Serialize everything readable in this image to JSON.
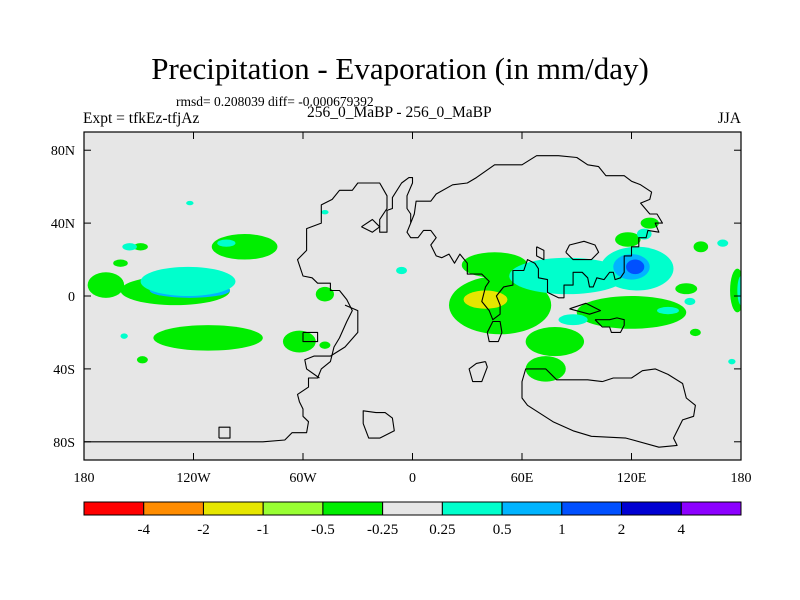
{
  "chart_data": {
    "type": "heatmap",
    "title": "Precipitation - Evaporation (in mm/day)",
    "subtitle": "rmsd= 0.208039 diff= -0.000679392",
    "left_string": "Expt = tfkEz-tfjAz",
    "center_string": "256_0_MaBP - 256_0_MaBP",
    "right_string": "JJA",
    "xlim": [
      -180,
      180
    ],
    "ylim": [
      -90,
      90
    ],
    "x_ticks": [
      {
        "value": -180,
        "label": "180"
      },
      {
        "value": -120,
        "label": "120W"
      },
      {
        "value": -60,
        "label": "60W"
      },
      {
        "value": 0,
        "label": "0"
      },
      {
        "value": 60,
        "label": "60E"
      },
      {
        "value": 120,
        "label": "120E"
      },
      {
        "value": 180,
        "label": "180"
      }
    ],
    "y_ticks": [
      {
        "value": 80,
        "label": "80N"
      },
      {
        "value": 40,
        "label": "40N"
      },
      {
        "value": 0,
        "label": "0"
      },
      {
        "value": -40,
        "label": "40S"
      },
      {
        "value": -80,
        "label": "80S"
      }
    ],
    "background_color": "#e6e6e6",
    "colorbar": {
      "levels": [
        "-4",
        "-2",
        "-1",
        "-0.5",
        "-0.25",
        "0.25",
        "0.5",
        "1",
        "2",
        "4"
      ],
      "colors": [
        "#ff0000",
        "#ff8c00",
        "#e6e600",
        "#99ff33",
        "#00ee00",
        "#e6e6e6",
        "#00ffcc",
        "#00b4ff",
        "#0050ff",
        "#0000d2",
        "#8c00ff"
      ]
    },
    "fields": [
      {
        "color": "#00ee00",
        "lon": -168,
        "lat": 6,
        "rlon": 10,
        "rlat": 7
      },
      {
        "color": "#00ee00",
        "lon": -130,
        "lat": 3,
        "rlon": 30,
        "rlat": 8
      },
      {
        "color": "#00b4ff",
        "lon": -122,
        "lat": 3,
        "rlon": 22,
        "rlat": 4
      },
      {
        "color": "#00ee00",
        "lon": -92,
        "lat": 27,
        "rlon": 18,
        "rlat": 7
      },
      {
        "color": "#00ee00",
        "lon": -160,
        "lat": 18,
        "rlon": 4,
        "rlat": 2
      },
      {
        "color": "#00ee00",
        "lon": -149,
        "lat": 27,
        "rlon": 4,
        "rlat": 2
      },
      {
        "color": "#00ee00",
        "lon": -112,
        "lat": -23,
        "rlon": 30,
        "rlat": 7
      },
      {
        "color": "#00ee00",
        "lon": -62,
        "lat": -25,
        "rlon": 9,
        "rlat": 6
      },
      {
        "color": "#00ee00",
        "lon": -48,
        "lat": 1,
        "rlon": 5,
        "rlat": 4
      },
      {
        "color": "#00ee00",
        "lon": -148,
        "lat": -35,
        "rlon": 3,
        "rlat": 2
      },
      {
        "color": "#00ee00",
        "lon": -48,
        "lat": -27,
        "rlon": 3,
        "rlat": 2
      },
      {
        "color": "#00ee00",
        "lon": 178,
        "lat": 3,
        "rlon": 4,
        "rlat": 12
      },
      {
        "color": "#00ee00",
        "lon": 48,
        "lat": -5,
        "rlon": 28,
        "rlat": 16
      },
      {
        "color": "#e6e600",
        "lon": 40,
        "lat": -2,
        "rlon": 12,
        "rlat": 5
      },
      {
        "color": "#00ee00",
        "lon": 45,
        "lat": 17,
        "rlon": 18,
        "rlat": 7
      },
      {
        "color": "#00ee00",
        "lon": 120,
        "lat": -9,
        "rlon": 30,
        "rlat": 9
      },
      {
        "color": "#00ee00",
        "lon": 78,
        "lat": -25,
        "rlon": 16,
        "rlat": 8
      },
      {
        "color": "#00ee00",
        "lon": 73,
        "lat": -40,
        "rlon": 11,
        "rlat": 7
      },
      {
        "color": "#00ee00",
        "lon": 130,
        "lat": 40,
        "rlon": 5,
        "rlat": 3
      },
      {
        "color": "#00ee00",
        "lon": 118,
        "lat": 31,
        "rlon": 7,
        "rlat": 4
      },
      {
        "color": "#00ee00",
        "lon": 158,
        "lat": 27,
        "rlon": 4,
        "rlat": 3
      },
      {
        "color": "#00ee00",
        "lon": 150,
        "lat": 4,
        "rlon": 6,
        "rlat": 3
      },
      {
        "color": "#00ee00",
        "lon": 155,
        "lat": -20,
        "rlon": 3,
        "rlat": 2
      },
      {
        "color": "#00ffcc",
        "lon": 85,
        "lat": 11,
        "rlon": 32,
        "rlat": 10
      },
      {
        "color": "#00ffcc",
        "lon": 123,
        "lat": 15,
        "rlon": 20,
        "rlat": 12
      },
      {
        "color": "#00b4ff",
        "lon": 120,
        "lat": 16,
        "rlon": 10,
        "rlat": 7
      },
      {
        "color": "#0050ff",
        "lon": 122,
        "lat": 16,
        "rlon": 5,
        "rlat": 4
      },
      {
        "color": "#00ffcc",
        "lon": 88,
        "lat": -13,
        "rlon": 8,
        "rlat": 3
      },
      {
        "color": "#00ffcc",
        "lon": 127,
        "lat": 34,
        "rlon": 4,
        "rlat": 3
      },
      {
        "color": "#00ffcc",
        "lon": -123,
        "lat": 8,
        "rlon": 26,
        "rlat": 8
      },
      {
        "color": "#00ffcc",
        "lon": -102,
        "lat": 29,
        "rlon": 5,
        "rlat": 2
      },
      {
        "color": "#00ffcc",
        "lon": -155,
        "lat": 27,
        "rlon": 4,
        "rlat": 2
      },
      {
        "color": "#00ffcc",
        "lon": -6,
        "lat": 14,
        "rlon": 3,
        "rlat": 2
      },
      {
        "color": "#00ffcc",
        "lon": 180,
        "lat": 3,
        "rlon": 2,
        "rlat": 8
      },
      {
        "color": "#00ffcc",
        "lon": 152,
        "lat": -3,
        "rlon": 3,
        "rlat": 2
      },
      {
        "color": "#00ffcc",
        "lon": 140,
        "lat": -8,
        "rlon": 6,
        "rlat": 2
      },
      {
        "color": "#00ffcc",
        "lon": 175,
        "lat": -36,
        "rlon": 2,
        "rlat": 1.5
      },
      {
        "color": "#00ffcc",
        "lon": -158,
        "lat": -22,
        "rlon": 2,
        "rlat": 1.5
      },
      {
        "color": "#00ffcc",
        "lon": 170,
        "lat": 29,
        "rlon": 3,
        "rlat": 2
      },
      {
        "color": "#00ffcc",
        "lon": -122,
        "lat": 51,
        "rlon": 2,
        "rlat": 1.2
      },
      {
        "color": "#00ffcc",
        "lon": -48,
        "lat": 46,
        "rlon": 2,
        "rlat": 1.2
      },
      {
        "color": "#00ee00",
        "lon": 69,
        "lat": -2,
        "rlon": 6,
        "rlat": 4
      }
    ],
    "coastlines": [
      [
        [
          -180,
          -80
        ],
        [
          -158,
          -80
        ],
        [
          -140,
          -80
        ],
        [
          -120,
          -80
        ],
        [
          -100,
          -80
        ],
        [
          -82,
          -80
        ],
        [
          -70,
          -79
        ],
        [
          -66,
          -75
        ],
        [
          -58,
          -75
        ],
        [
          -57,
          -69
        ],
        [
          -60,
          -66
        ],
        [
          -60,
          -62
        ],
        [
          -62,
          -58
        ],
        [
          -63,
          -54
        ],
        [
          -57,
          -50
        ],
        [
          -57,
          -45
        ],
        [
          -52,
          -45
        ],
        [
          -50,
          -40
        ],
        [
          -45,
          -36
        ],
        [
          -43,
          -28
        ],
        [
          -40,
          -23
        ],
        [
          -36,
          -14
        ],
        [
          -33,
          -8
        ],
        [
          -36,
          -2
        ],
        [
          -40,
          3
        ],
        [
          -45,
          3
        ],
        [
          -45,
          7
        ],
        [
          -52,
          7
        ],
        [
          -55,
          10
        ],
        [
          -60,
          11
        ],
        [
          -63,
          20
        ],
        [
          -58,
          25
        ],
        [
          -58,
          37
        ],
        [
          -50,
          40
        ],
        [
          -50,
          50
        ],
        [
          -44,
          53
        ],
        [
          -40,
          58
        ],
        [
          -33,
          58
        ],
        [
          -30,
          62
        ],
        [
          -18,
          62
        ],
        [
          -14,
          55
        ],
        [
          -14,
          48
        ],
        [
          -18,
          42
        ],
        [
          -18,
          35
        ],
        [
          -14,
          35
        ],
        [
          -14,
          47
        ],
        [
          -11,
          48
        ],
        [
          -11,
          54
        ],
        [
          -6,
          62
        ],
        [
          -2,
          65
        ],
        [
          0,
          65
        ],
        [
          0,
          62
        ],
        [
          -3,
          55
        ],
        [
          -3,
          48
        ],
        [
          -1,
          45
        ],
        [
          -1,
          40
        ],
        [
          -3,
          35
        ],
        [
          -1,
          32
        ],
        [
          3,
          32
        ],
        [
          6,
          36
        ],
        [
          10,
          36
        ],
        [
          13,
          32
        ],
        [
          10,
          28
        ],
        [
          13,
          22
        ],
        [
          16,
          21
        ],
        [
          20,
          23
        ],
        [
          23,
          18
        ],
        [
          26,
          23
        ],
        [
          30,
          18
        ],
        [
          30,
          12
        ],
        [
          38,
          12
        ],
        [
          42,
          8
        ],
        [
          40,
          5
        ],
        [
          38,
          -3
        ],
        [
          42,
          -8
        ],
        [
          44,
          -13
        ],
        [
          48,
          -10
        ],
        [
          48,
          -5
        ],
        [
          46,
          0
        ],
        [
          50,
          5
        ],
        [
          55,
          6
        ],
        [
          55,
          14
        ],
        [
          61,
          14
        ],
        [
          63,
          20
        ],
        [
          67,
          18
        ],
        [
          69,
          15
        ],
        [
          69,
          10
        ],
        [
          74,
          9
        ],
        [
          74,
          2
        ],
        [
          80,
          -1
        ],
        [
          83,
          -1
        ],
        [
          83,
          2
        ],
        [
          83,
          6
        ],
        [
          88,
          6
        ],
        [
          88,
          13
        ],
        [
          93,
          13
        ],
        [
          96,
          10
        ],
        [
          97,
          5
        ],
        [
          99,
          5
        ],
        [
          101,
          10
        ],
        [
          105,
          9
        ],
        [
          108,
          13
        ],
        [
          110,
          13
        ],
        [
          111,
          9
        ],
        [
          114,
          10
        ],
        [
          116,
          13
        ],
        [
          116,
          22
        ],
        [
          120,
          22
        ],
        [
          120,
          27
        ],
        [
          124,
          27
        ],
        [
          124,
          32
        ],
        [
          128,
          32
        ],
        [
          129,
          36
        ],
        [
          135,
          35
        ],
        [
          133,
          40
        ],
        [
          137,
          40
        ],
        [
          134,
          45
        ],
        [
          130,
          45
        ],
        [
          125,
          51
        ],
        [
          130,
          53
        ],
        [
          131,
          57
        ],
        [
          125,
          61
        ],
        [
          120,
          63
        ],
        [
          116,
          66
        ],
        [
          106,
          66
        ],
        [
          102,
          71
        ],
        [
          96,
          72
        ],
        [
          90,
          76
        ],
        [
          80,
          77
        ],
        [
          68,
          77
        ],
        [
          60,
          72
        ],
        [
          45,
          72
        ],
        [
          35,
          65
        ],
        [
          30,
          62
        ],
        [
          22,
          61
        ],
        [
          13,
          56
        ],
        [
          10,
          52
        ],
        [
          2,
          52
        ],
        [
          1,
          45
        ],
        [
          -1,
          40
        ]
      ],
      [
        [
          -37,
          -5
        ],
        [
          -30,
          -8
        ],
        [
          -30,
          -20
        ],
        [
          -37,
          -28
        ],
        [
          -45,
          -33
        ],
        [
          -54,
          -33
        ],
        [
          -59,
          -35
        ],
        [
          -58,
          -40
        ],
        [
          -51,
          -45
        ]
      ],
      [
        [
          40,
          -36
        ],
        [
          41,
          -39
        ],
        [
          38,
          -47
        ],
        [
          33,
          -47
        ],
        [
          31,
          -40
        ],
        [
          35,
          -37
        ],
        [
          40,
          -36
        ]
      ],
      [
        [
          41,
          -20
        ],
        [
          44,
          -14
        ],
        [
          48,
          -14
        ],
        [
          49,
          -20
        ],
        [
          47,
          -25
        ],
        [
          42,
          -25
        ],
        [
          41,
          -20
        ]
      ],
      [
        [
          104,
          -47
        ],
        [
          110,
          -45
        ],
        [
          120,
          -45
        ],
        [
          126,
          -41
        ],
        [
          133,
          -40
        ],
        [
          140,
          -43
        ],
        [
          148,
          -48
        ],
        [
          150,
          -56
        ],
        [
          155,
          -60
        ],
        [
          154,
          -66
        ],
        [
          148,
          -68
        ],
        [
          143,
          -78
        ],
        [
          145,
          -82
        ],
        [
          135,
          -83
        ],
        [
          117,
          -78
        ],
        [
          98,
          -77
        ],
        [
          88,
          -74
        ],
        [
          77,
          -69
        ],
        [
          63,
          -60
        ],
        [
          60,
          -56
        ],
        [
          60,
          -47
        ],
        [
          62,
          -40
        ],
        [
          73,
          -40
        ],
        [
          79,
          -46
        ],
        [
          96,
          -46
        ],
        [
          104,
          -47
        ]
      ],
      [
        [
          100,
          -13
        ],
        [
          104,
          -17
        ],
        [
          108,
          -17
        ],
        [
          109,
          -20
        ],
        [
          114,
          -20
        ],
        [
          116,
          -16
        ],
        [
          116,
          -13
        ],
        [
          112,
          -12
        ],
        [
          108,
          -13
        ],
        [
          100,
          -13
        ]
      ],
      [
        [
          -27,
          -70
        ],
        [
          -27,
          -63
        ],
        [
          -20,
          -64
        ],
        [
          -15,
          -64
        ],
        [
          -11,
          -67
        ],
        [
          -10,
          -74
        ],
        [
          -18,
          -78
        ],
        [
          -24,
          -78
        ],
        [
          -27,
          -70
        ]
      ],
      [
        [
          -106,
          -78
        ],
        [
          -106,
          -72
        ],
        [
          -100,
          -72
        ],
        [
          -100,
          -78
        ],
        [
          -106,
          -78
        ]
      ],
      [
        [
          86,
          -7
        ],
        [
          95,
          -4
        ],
        [
          103,
          -8
        ],
        [
          97,
          -10
        ],
        [
          86,
          -7
        ]
      ],
      [
        [
          68,
          27
        ],
        [
          68,
          22
        ],
        [
          72,
          20
        ],
        [
          72,
          25
        ],
        [
          68,
          27
        ]
      ],
      [
        [
          84,
          24
        ],
        [
          86,
          28
        ],
        [
          94,
          30
        ],
        [
          100,
          28
        ],
        [
          102,
          24
        ],
        [
          98,
          20
        ],
        [
          88,
          20
        ],
        [
          84,
          24
        ]
      ],
      [
        [
          -28,
          38
        ],
        [
          -22,
          42
        ],
        [
          -18,
          38
        ],
        [
          -22,
          35
        ],
        [
          -28,
          38
        ]
      ],
      [
        [
          -60,
          -20
        ],
        [
          -60,
          -25
        ],
        [
          -52,
          -25
        ],
        [
          -52,
          -20
        ],
        [
          -60,
          -20
        ]
      ]
    ]
  }
}
